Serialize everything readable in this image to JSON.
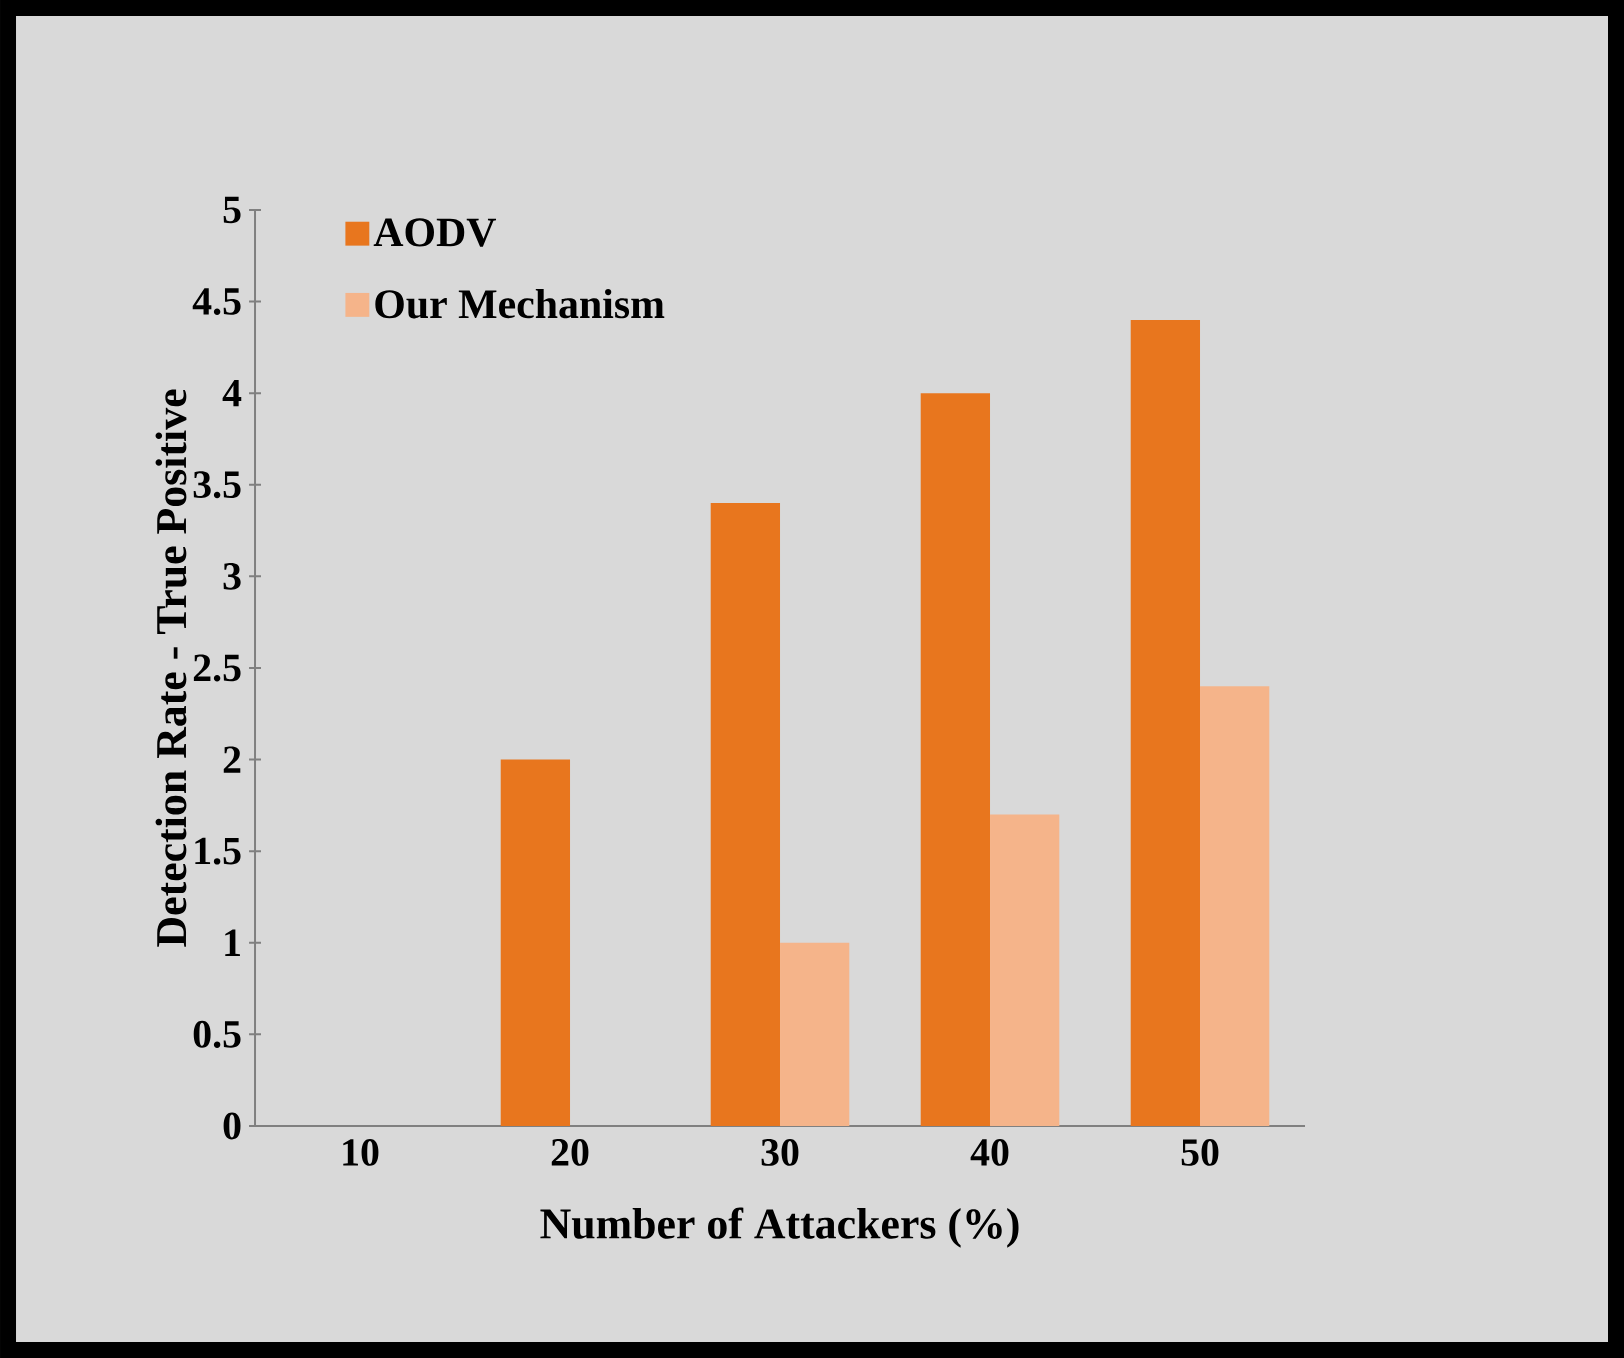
{
  "chart_data": {
    "type": "bar",
    "xlabel": "Number  of Attackers (%)",
    "ylabel": "Detection Rate - True Positive",
    "categories": [
      "10",
      "20",
      "30",
      "40",
      "50"
    ],
    "series": [
      {
        "name": "AODV",
        "color": "#e8761e",
        "values": [
          0,
          2,
          3.4,
          4,
          4.4
        ]
      },
      {
        "name": "Our Mechanism",
        "color": "#f5b48a",
        "values": [
          0,
          0,
          1,
          1.7,
          2.4
        ]
      }
    ],
    "ylim": [
      0,
      5
    ],
    "yticks": [
      0,
      0.5,
      1,
      1.5,
      2,
      2.5,
      3,
      3.5,
      4,
      4.5,
      5
    ],
    "grid": false,
    "legend": "top left"
  }
}
